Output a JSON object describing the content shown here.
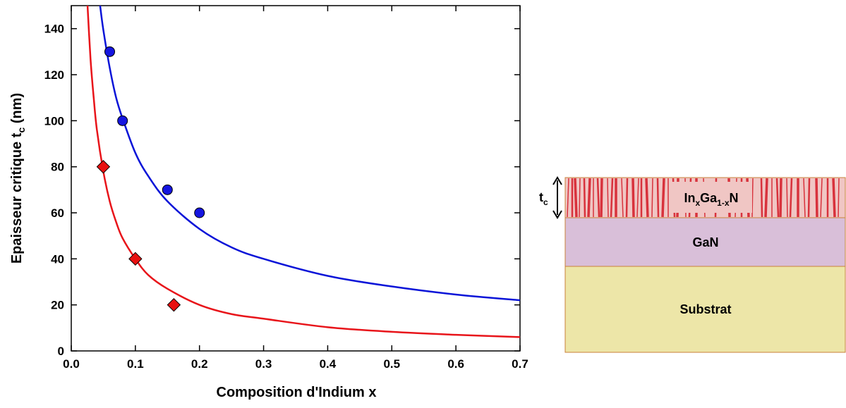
{
  "chart_data": {
    "type": "scatter",
    "xlabel": "Composition d'Indium x",
    "ylabel": [
      "Epaisseur critique t",
      "c",
      " (nm)"
    ],
    "xlim": [
      0,
      0.7
    ],
    "ylim": [
      0,
      150
    ],
    "xticks": [
      {
        "value": 0,
        "label": "0.0"
      },
      0.1,
      0.2,
      0.3,
      0.4,
      0.5,
      0.6,
      0.7
    ],
    "yticks": [
      0,
      20,
      40,
      60,
      80,
      100,
      120,
      140
    ],
    "curves": [
      {
        "color": "#0a14d8",
        "x": [
          0.045,
          0.05,
          0.06,
          0.07,
          0.08,
          0.1,
          0.12,
          0.15,
          0.2,
          0.25,
          0.3,
          0.4,
          0.5,
          0.6,
          0.7
        ],
        "values": [
          150,
          139.5,
          123,
          110,
          101,
          86,
          76,
          65,
          53,
          45,
          40,
          32.6,
          28,
          24.5,
          22
        ]
      },
      {
        "color": "#e8141a",
        "x": [
          0.025,
          0.03,
          0.035,
          0.04,
          0.05,
          0.06,
          0.07,
          0.08,
          0.1,
          0.12,
          0.15,
          0.2,
          0.25,
          0.3,
          0.4,
          0.5,
          0.6,
          0.7
        ],
        "values": [
          152,
          127,
          110,
          96,
          78,
          65,
          56,
          49,
          40,
          33,
          27,
          20,
          16,
          14,
          10.3,
          8.3,
          7,
          6
        ]
      }
    ],
    "series": [
      {
        "marker": "circle",
        "color": "#1515e0",
        "x": [
          0.06,
          0.08,
          0.15,
          0.2
        ],
        "values": [
          130,
          100,
          70,
          60
        ]
      },
      {
        "marker": "diamond",
        "color": "#e81010",
        "x": [
          0.05,
          0.1,
          0.16
        ],
        "values": [
          80,
          40,
          20
        ]
      }
    ]
  },
  "diagram": {
    "thickness": [
      "t",
      "c"
    ],
    "layers": [
      [
        "In",
        "x",
        "Ga",
        "1-x",
        "N"
      ],
      [
        "GaN"
      ],
      [
        "Substrat"
      ]
    ]
  }
}
